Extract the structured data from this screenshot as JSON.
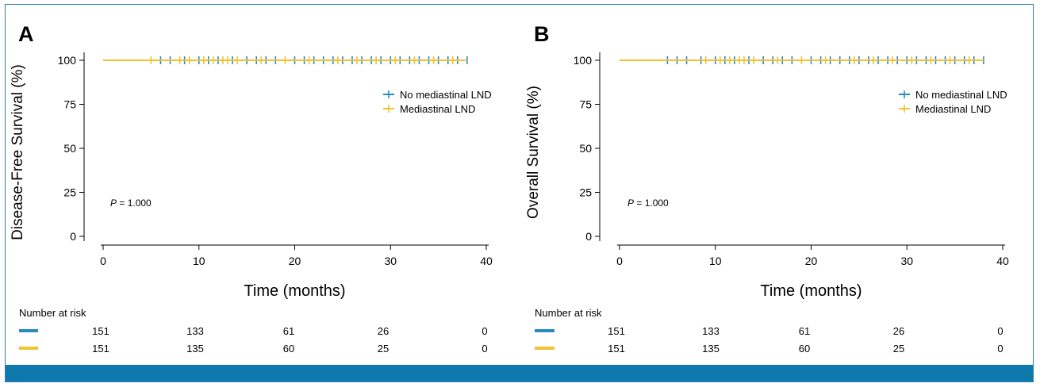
{
  "colors": {
    "series1": "#2a8ac2",
    "series2": "#f1c232",
    "frame": "#2d7fb0",
    "bar": "#0f79ad"
  },
  "chart_data": [
    {
      "type": "line",
      "panel_label": "A",
      "ylabel": "Disease-Free Survival (%)",
      "xlabel": "Time (months)",
      "xlim": [
        0,
        40
      ],
      "ylim": [
        0,
        100
      ],
      "xticks": [
        0,
        10,
        20,
        30,
        40
      ],
      "yticks": [
        0,
        25,
        50,
        75,
        100
      ],
      "annotation": {
        "p_label": "P",
        "p_value": "= 1.000"
      },
      "legend_position": "right",
      "series": [
        {
          "name": "No mediastinal LND",
          "x": [
            0,
            38
          ],
          "y": [
            100,
            100
          ],
          "censor_x": [
            6,
            7,
            8.5,
            10,
            11,
            12,
            13.5,
            15,
            16,
            17,
            18,
            20,
            21,
            22,
            23,
            24,
            25,
            26,
            27,
            28,
            29,
            30,
            31,
            32,
            33,
            34,
            35,
            36,
            37,
            38
          ]
        },
        {
          "name": "Mediastinal LND",
          "x": [
            0,
            38
          ],
          "y": [
            100,
            100
          ],
          "censor_x": [
            5,
            8,
            9,
            10.5,
            11.5,
            12.5,
            13,
            14,
            16.5,
            19,
            21.5,
            24.5,
            26.5,
            28.5,
            30.5,
            32.5,
            34.5,
            36.5
          ]
        }
      ],
      "risk_table": {
        "title": "Number at risk",
        "rows": [
          {
            "series": "No mediastinal LND",
            "values": [
              "151",
              "133",
              "61",
              "26",
              "0"
            ]
          },
          {
            "series": "Mediastinal LND",
            "values": [
              "151",
              "135",
              "60",
              "25",
              "0"
            ]
          }
        ]
      }
    },
    {
      "type": "line",
      "panel_label": "B",
      "ylabel": "Overall Survival (%)",
      "xlabel": "Time (months)",
      "xlim": [
        0,
        40
      ],
      "ylim": [
        0,
        100
      ],
      "xticks": [
        0,
        10,
        20,
        30,
        40
      ],
      "yticks": [
        0,
        25,
        50,
        75,
        100
      ],
      "annotation": {
        "p_label": "P",
        "p_value": "= 1.000"
      },
      "legend_position": "right",
      "series": [
        {
          "name": "No mediastinal LND",
          "x": [
            0,
            38
          ],
          "y": [
            100,
            100
          ],
          "censor_x": [
            5,
            6,
            7,
            8.5,
            10,
            11,
            12,
            13.5,
            15,
            16,
            17,
            18,
            20,
            21,
            22,
            23,
            24,
            25,
            26,
            27,
            28,
            29,
            30,
            31,
            32,
            33,
            34,
            35,
            36,
            37,
            38
          ]
        },
        {
          "name": "Mediastinal LND",
          "x": [
            0,
            38
          ],
          "y": [
            100,
            100
          ],
          "censor_x": [
            9,
            10.5,
            11.5,
            12.5,
            13,
            14,
            16.5,
            19,
            21.5,
            24.5,
            26.5,
            28.5,
            30.5,
            32.5,
            34.5,
            36.5
          ]
        }
      ],
      "risk_table": {
        "title": "Number at risk",
        "rows": [
          {
            "series": "No mediastinal LND",
            "values": [
              "151",
              "133",
              "61",
              "26",
              "0"
            ]
          },
          {
            "series": "Mediastinal LND",
            "values": [
              "151",
              "135",
              "60",
              "25",
              "0"
            ]
          }
        ]
      }
    }
  ]
}
